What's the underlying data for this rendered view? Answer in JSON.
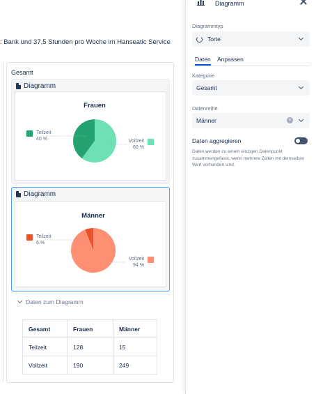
{
  "intro_text": ": Bank und 37,5 Stunden pro Woche im Hanseatic Service",
  "gesamt_label": "Gesamt",
  "block_title": "Diagramm",
  "charts": [
    {
      "title": "Frauen",
      "slices": [
        {
          "label": "Teilzeit",
          "percent_label": "40 %",
          "value": 40,
          "color": "#23a36f"
        },
        {
          "label": "Vollzeit",
          "percent_label": "60 %",
          "value": 60,
          "color": "#6de0b4"
        }
      ]
    },
    {
      "title": "Männer",
      "slices": [
        {
          "label": "Teilzeit",
          "percent_label": "6 %",
          "value": 6,
          "color": "#e8542a"
        },
        {
          "label": "Vollzeit",
          "percent_label": "94 %",
          "value": 94,
          "color": "#ff8f73"
        }
      ]
    }
  ],
  "chart_data": [
    {
      "type": "pie",
      "title": "Frauen",
      "categories": [
        "Teilzeit",
        "Vollzeit"
      ],
      "values": [
        40,
        60
      ],
      "units": "%"
    },
    {
      "type": "pie",
      "title": "Männer",
      "categories": [
        "Teilzeit",
        "Vollzeit"
      ],
      "values": [
        6,
        94
      ],
      "units": "%"
    }
  ],
  "data_toggle_label": "Daten zum Diagramm",
  "table": {
    "headers": [
      "Gesamt",
      "Frauen",
      "Männer"
    ],
    "rows": [
      [
        "Teilzeit",
        "128",
        "15"
      ],
      [
        "Vollzeit",
        "190",
        "249"
      ]
    ]
  },
  "panel": {
    "title": "Diagramm",
    "chart_type_label": "Diagrammtyp",
    "chart_type_value": "Torte",
    "tabs": [
      "Daten",
      "Anpassen"
    ],
    "category_label": "Kategorie",
    "category_value": "Gesamt",
    "series_label": "Datenreihe",
    "series_value": "Männer",
    "aggregate_label": "Daten aggregieren",
    "aggregate_help": "Daten werden zu einem einzigen Datenpunkt zusammengefasst, wenn mehrere Zeilen mit demselben Wert vorhanden sind.",
    "aggregate_on": false
  },
  "colors": {
    "accent": "#0052cc",
    "selected_border": "#4c9aff"
  }
}
